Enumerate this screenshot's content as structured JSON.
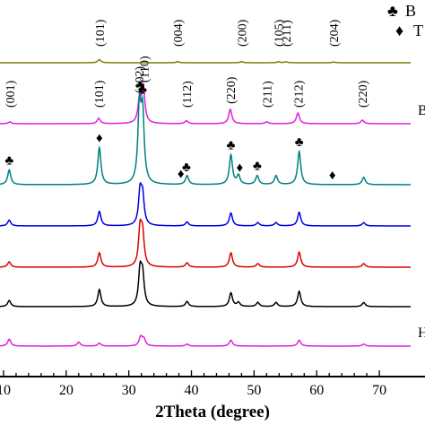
{
  "chart_data": {
    "type": "line",
    "xlabel": "2Theta (degree)",
    "ylabel": "",
    "xlim": [
      8,
      75
    ],
    "x_ticks": [
      "10",
      "20",
      "30",
      "40",
      "50",
      "60",
      "70"
    ],
    "legend": [
      {
        "symbol": "♣",
        "text": "B"
      },
      {
        "symbol": "♦",
        "text": "T"
      }
    ],
    "series": [
      {
        "curve_label": "",
        "color": "#7f7f00",
        "peaks": [
          [
            25.3,
            0.35
          ],
          [
            37.8,
            0.12
          ],
          [
            48.0,
            0.12
          ],
          [
            53.9,
            0.1
          ],
          [
            55.1,
            0.1
          ],
          [
            62.7,
            0.08
          ]
        ],
        "hkl": [
          {
            "x": 25.3,
            "text": "(101)"
          },
          {
            "x": 37.8,
            "text": "(004)"
          },
          {
            "x": 48.0,
            "text": "(200)"
          },
          {
            "x": 53.9,
            "text": "(105)"
          },
          {
            "x": 55.1,
            "text": "(211)"
          },
          {
            "x": 62.7,
            "text": "(204)"
          }
        ]
      },
      {
        "curve_label": "B",
        "color": "#e020e0",
        "peaks": [
          [
            11.0,
            0.05
          ],
          [
            25.2,
            0.15
          ],
          [
            31.7,
            0.6
          ],
          [
            32.3,
            1.0
          ],
          [
            39.2,
            0.08
          ],
          [
            46.2,
            0.4
          ],
          [
            52.0,
            0.05
          ],
          [
            57.0,
            0.3
          ],
          [
            67.3,
            0.1
          ]
        ],
        "hkl": [
          {
            "x": 11.0,
            "text": "(001)"
          },
          {
            "x": 25.2,
            "text": "(101)"
          },
          {
            "x": 31.6,
            "text": "(102)"
          },
          {
            "x": 32.4,
            "text": "(110)"
          },
          {
            "x": 39.2,
            "text": "(112)"
          },
          {
            "x": 46.2,
            "text": "(220)"
          },
          {
            "x": 52.0,
            "text": "(211)"
          },
          {
            "x": 57.0,
            "text": "(212)"
          },
          {
            "x": 67.3,
            "text": "(220)"
          }
        ]
      },
      {
        "curve_label": "",
        "color": "#008080",
        "peaks": [
          [
            10.9,
            0.2
          ],
          [
            25.3,
            0.5
          ],
          [
            31.7,
            1.0
          ],
          [
            32.2,
            0.9
          ],
          [
            39.3,
            0.12
          ],
          [
            46.3,
            0.4
          ],
          [
            47.5,
            0.12
          ],
          [
            50.5,
            0.12
          ],
          [
            53.5,
            0.12
          ],
          [
            57.2,
            0.45
          ],
          [
            67.5,
            0.1
          ]
        ],
        "markers": [
          {
            "x": 10.9,
            "symbol": "♣"
          },
          {
            "x": 25.3,
            "symbol": "♦"
          },
          {
            "x": 31.8,
            "symbol": "♣"
          },
          {
            "x": 32.2,
            "symbol": "♣"
          },
          {
            "x": 38.3,
            "symbol": "♦"
          },
          {
            "x": 39.2,
            "symbol": "♣"
          },
          {
            "x": 46.3,
            "symbol": "♣"
          },
          {
            "x": 47.7,
            "symbol": "♦"
          },
          {
            "x": 50.5,
            "symbol": "♣"
          },
          {
            "x": 57.2,
            "symbol": "♣"
          },
          {
            "x": 62.5,
            "symbol": "♦"
          }
        ]
      },
      {
        "curve_label": "",
        "color": "#0000dd",
        "peaks": [
          [
            10.9,
            0.18
          ],
          [
            25.3,
            0.45
          ],
          [
            31.8,
            1.0
          ],
          [
            32.2,
            0.85
          ],
          [
            39.3,
            0.12
          ],
          [
            46.3,
            0.4
          ],
          [
            50.6,
            0.1
          ],
          [
            53.5,
            0.1
          ],
          [
            57.2,
            0.42
          ],
          [
            67.5,
            0.1
          ]
        ]
      },
      {
        "curve_label": "",
        "color": "#dd0000",
        "peaks": [
          [
            10.9,
            0.15
          ],
          [
            25.3,
            0.4
          ],
          [
            31.8,
            1.0
          ],
          [
            32.2,
            0.85
          ],
          [
            39.3,
            0.12
          ],
          [
            46.3,
            0.4
          ],
          [
            50.6,
            0.1
          ],
          [
            57.2,
            0.42
          ],
          [
            67.5,
            0.1
          ]
        ]
      },
      {
        "curve_label": "",
        "color": "#000000",
        "peaks": [
          [
            10.9,
            0.18
          ],
          [
            25.3,
            0.5
          ],
          [
            31.8,
            1.0
          ],
          [
            32.2,
            0.85
          ],
          [
            39.3,
            0.15
          ],
          [
            46.3,
            0.4
          ],
          [
            47.5,
            0.12
          ],
          [
            50.6,
            0.12
          ],
          [
            53.5,
            0.12
          ],
          [
            57.2,
            0.45
          ],
          [
            67.5,
            0.12
          ]
        ]
      },
      {
        "curve_label": "H-",
        "color": "#e020e0",
        "peaks": [
          [
            10.9,
            0.35
          ],
          [
            22.0,
            0.2
          ],
          [
            25.3,
            0.15
          ],
          [
            31.9,
            0.45
          ],
          [
            32.4,
            0.35
          ],
          [
            39.3,
            0.1
          ],
          [
            46.3,
            0.3
          ],
          [
            57.2,
            0.3
          ],
          [
            67.5,
            0.1
          ]
        ]
      }
    ]
  }
}
